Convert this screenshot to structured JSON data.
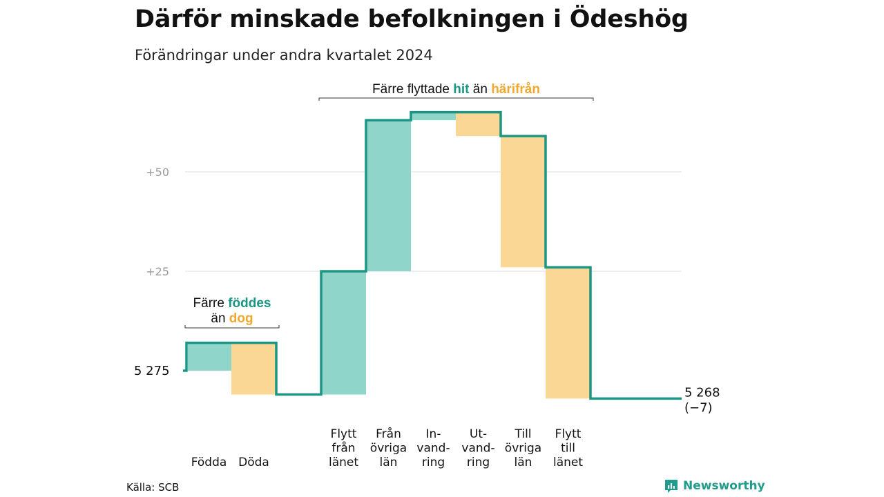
{
  "title": "Därför minskade befolkningen i Ödeshög",
  "subtitle": "Förändringar under andra kvartalet 2024",
  "source": "Källa: SCB",
  "brand": "Newsworthy",
  "colors": {
    "increase": "#8fd5c9",
    "decrease": "#fbd795",
    "line": "#1b9683",
    "teal_text": "#1b9683",
    "orange_text": "#f0a830",
    "grid": "#dddddd",
    "tick_text": "#9a9a9a"
  },
  "chart_data": {
    "type": "waterfall",
    "start_value": 5275,
    "start_label": "5 275",
    "end_label": "5 268",
    "end_change_label": "(−7)",
    "categories": [
      {
        "label": [
          "Födda"
        ],
        "change": 7,
        "kind": "increase"
      },
      {
        "label": [
          "Döda"
        ],
        "change": -13,
        "kind": "decrease"
      },
      {
        "label": [
          "Flytt",
          "från",
          "länet"
        ],
        "change": 31,
        "kind": "increase"
      },
      {
        "label": [
          "Från",
          "övriga",
          "län"
        ],
        "change": 38,
        "kind": "increase"
      },
      {
        "label": [
          "In-",
          "vand-",
          "ring"
        ],
        "change": 2,
        "kind": "increase"
      },
      {
        "label": [
          "Ut-",
          "vand-",
          "ring"
        ],
        "change": -6,
        "kind": "decrease"
      },
      {
        "label": [
          "Till",
          "övriga",
          "län"
        ],
        "change": -33,
        "kind": "decrease"
      },
      {
        "label": [
          "Flytt",
          "till",
          "länet"
        ],
        "change": -33,
        "kind": "decrease"
      }
    ],
    "ylim": [
      -7,
      66
    ],
    "yticks": [
      {
        "value": 25,
        "label": "+25"
      },
      {
        "value": 50,
        "label": "+50"
      }
    ],
    "annotations": [
      {
        "text_parts": [
          [
            "Färre ",
            "plain"
          ],
          [
            "föddes",
            "teal"
          ]
        ],
        "text_parts2": [
          [
            "än ",
            "plain"
          ],
          [
            "dog",
            "orange"
          ]
        ],
        "from": 0,
        "to": 2
      },
      {
        "text_parts": [
          [
            "Färre flyttade ",
            "plain"
          ],
          [
            "hit",
            "teal"
          ],
          [
            " än ",
            "plain"
          ],
          [
            "härifrån",
            "orange"
          ]
        ],
        "from": 3,
        "to": 9
      }
    ]
  }
}
